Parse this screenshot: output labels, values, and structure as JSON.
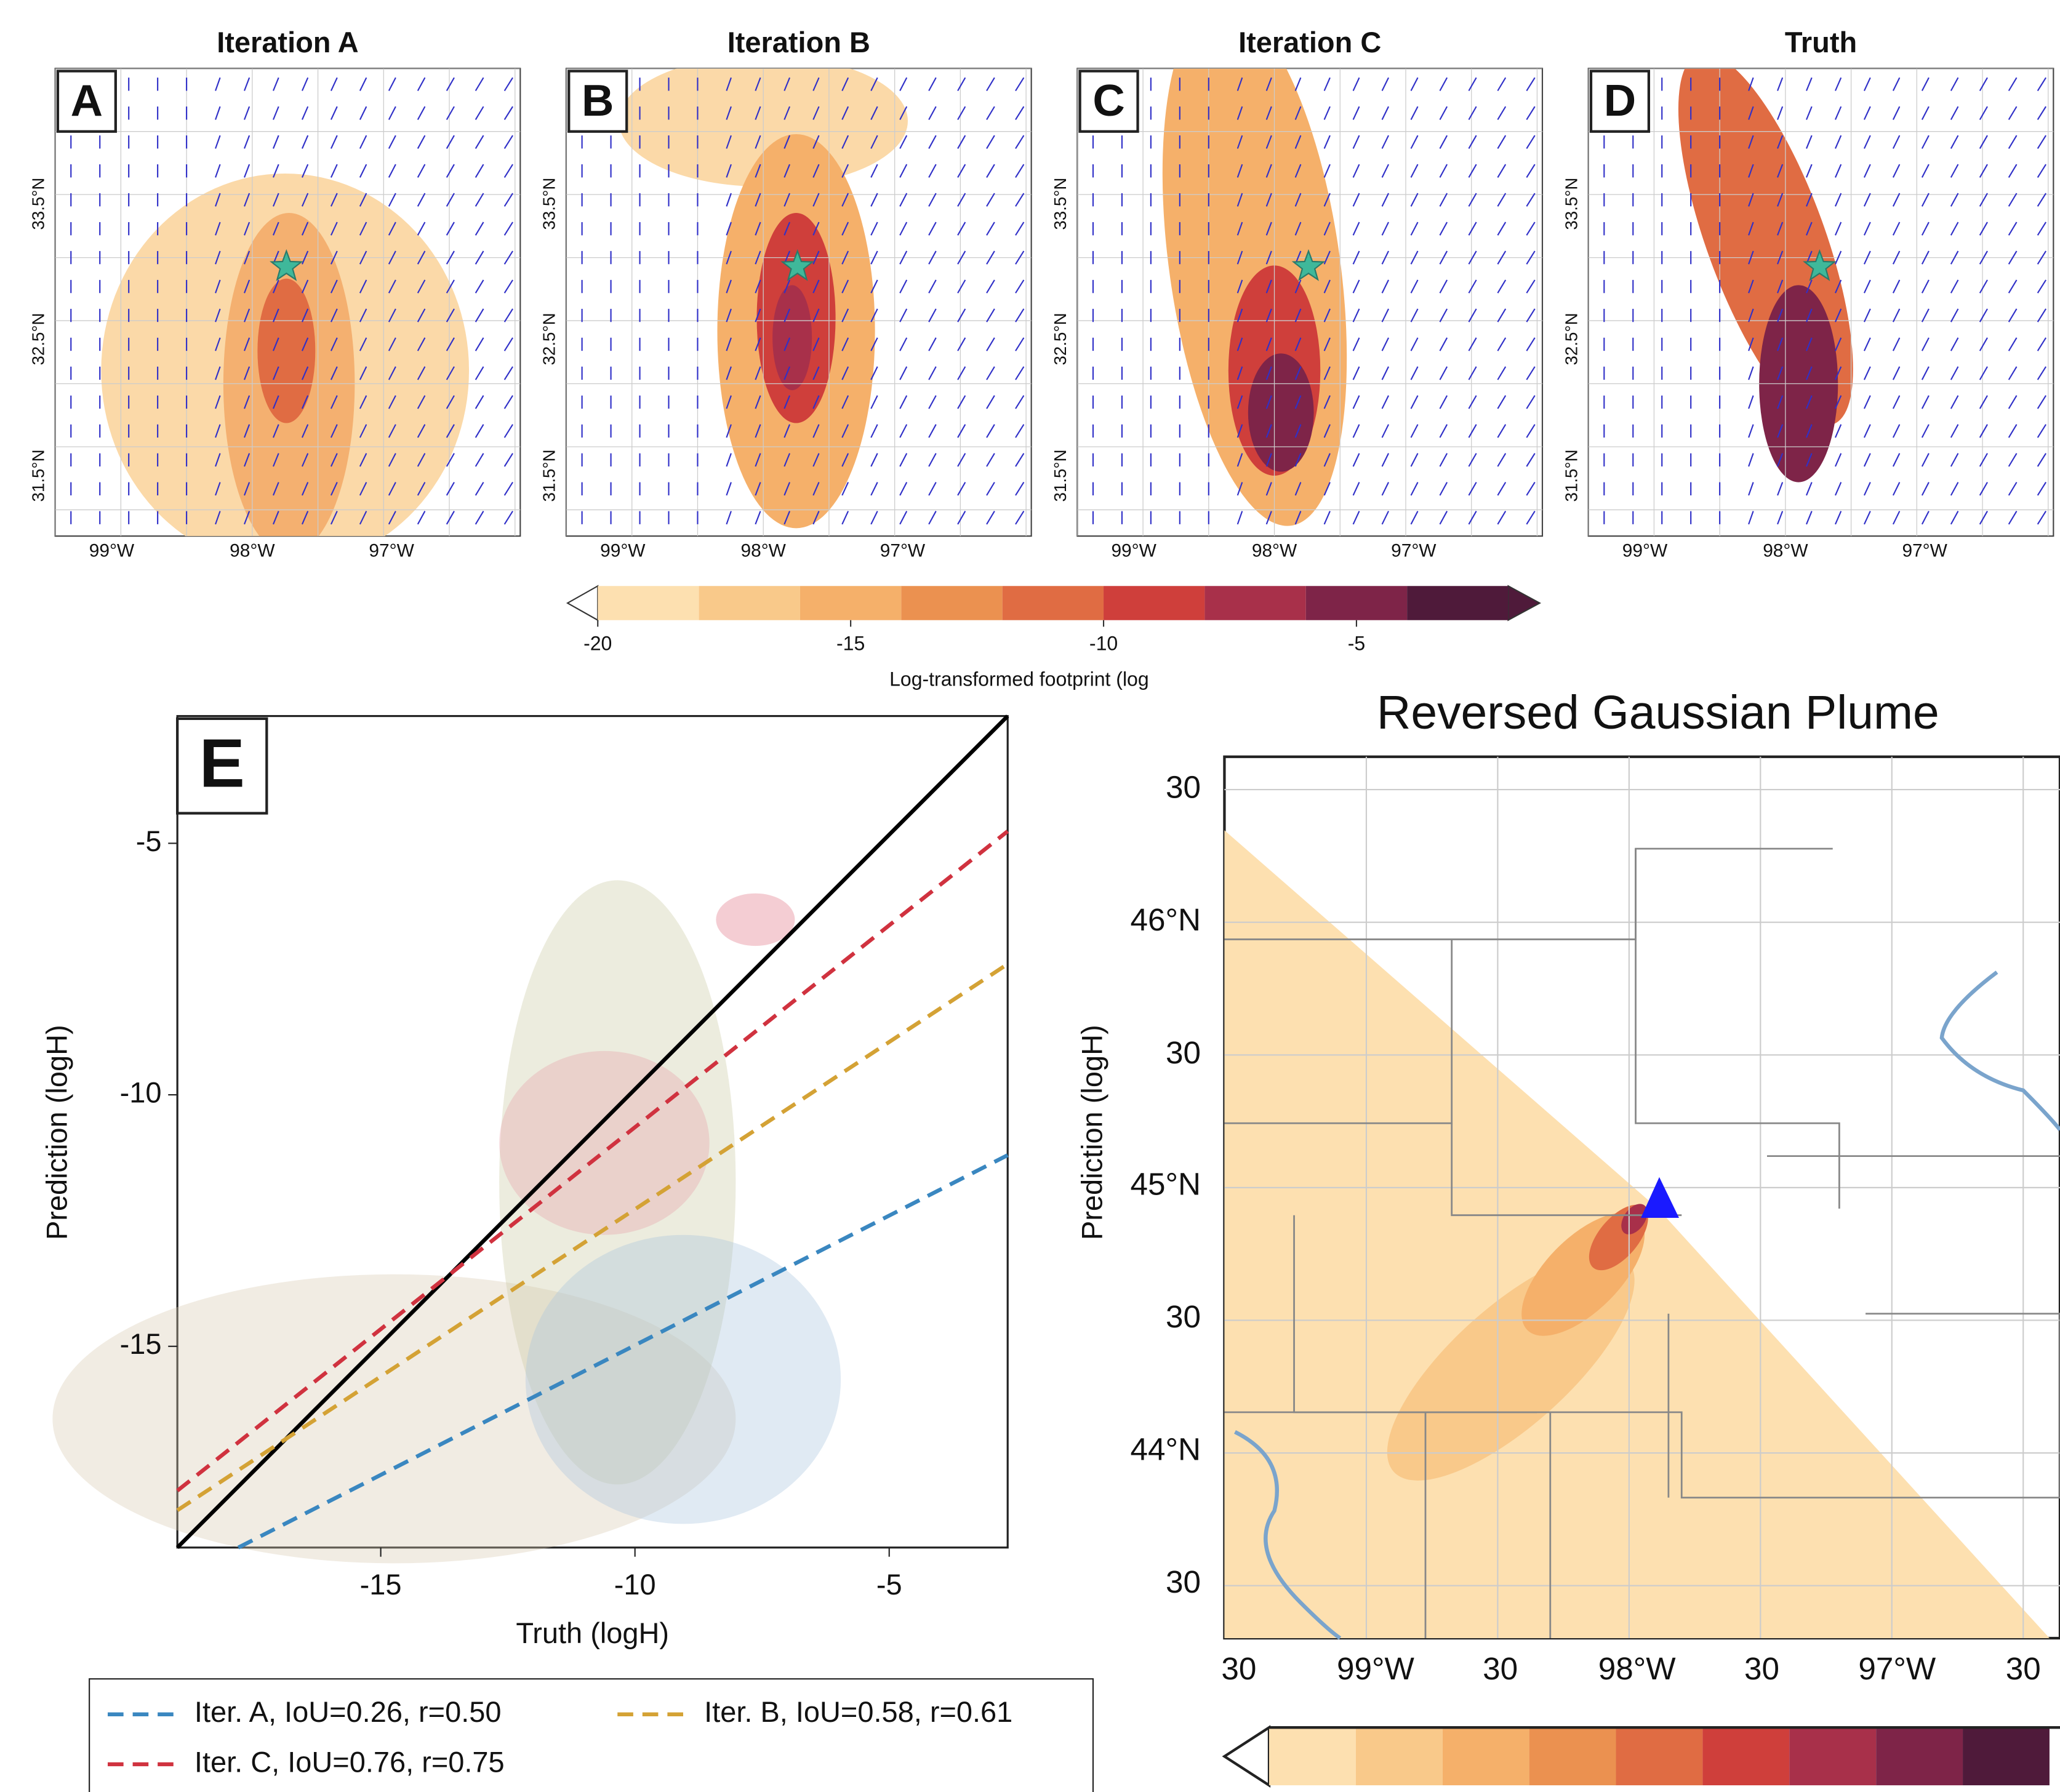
{
  "chart_data": [
    {
      "type": "map-panels",
      "panels": [
        {
          "title": "Iteration A",
          "label": "A"
        },
        {
          "title": "Iteration B",
          "label": "B"
        },
        {
          "title": "Iteration C",
          "label": "C"
        },
        {
          "title": "Truth",
          "label": "D"
        }
      ],
      "lat_labels": [
        "33.5°N",
        "32.5°N",
        "31.5°N"
      ],
      "lon_labels": [
        "99°W",
        "98°W",
        "97°W"
      ]
    },
    {
      "type": "colorbar",
      "xlim": [
        -20,
        -2
      ],
      "bins": [
        -20,
        -18,
        -16,
        -14,
        -12,
        -10,
        -8,
        -6,
        -4,
        -2
      ],
      "colors": [
        "#fde0b0",
        "#f9c98a",
        "#f5b06a",
        "#eb9150",
        "#e06c43",
        "#cf3f3b",
        "#a8304a",
        "#7e2448",
        "#4f1a3a"
      ],
      "xticks": [
        -20,
        -15,
        -10,
        -5
      ],
      "xlabel": "Log-transformed footprint (log"
    },
    {
      "type": "scatter-lines",
      "label": "E",
      "xlabel": "Truth (logH)",
      "ylabel": "Prediction (logH)",
      "xlim": [
        -19,
        -2.67
      ],
      "ylim": [
        -19,
        -2.47
      ],
      "xticks": [
        -15,
        -10,
        -5
      ],
      "yticks": [
        -5,
        -10,
        -15
      ],
      "reference_line": {
        "x": [
          -19,
          -2.67
        ],
        "y": [
          -19,
          -2.47
        ],
        "color": "#000000"
      },
      "series": [
        {
          "name": "Iter. A, IoU=0.26, r=0.50",
          "color": "#3a87c0",
          "x": [
            -17.8,
            -2.67
          ],
          "y": [
            -19,
            -11.2
          ]
        },
        {
          "name": "Iter. B, IoU=0.58, r=0.61",
          "color": "#d4a235",
          "x": [
            -19,
            -2.67
          ],
          "y": [
            -18.26,
            -7.4
          ]
        },
        {
          "name": "Iter. C, IoU=0.76, r=0.75",
          "color": "#d0323f",
          "x": [
            -19,
            -2.67
          ],
          "y": [
            -17.87,
            -4.76
          ]
        }
      ]
    },
    {
      "type": "plume-map",
      "title": "Reversed Gaussian Plume",
      "ylabel": "Prediction (logH)",
      "lat_labels": [
        "30",
        "46°N",
        "30",
        "45°N",
        "30",
        "44°N",
        "30"
      ],
      "lon_labels": [
        "30",
        "99°W",
        "30",
        "98°W",
        "30",
        "97°W",
        "30"
      ],
      "colors": [
        "#fde0b0",
        "#f9c98a",
        "#f5b06a",
        "#eb9150",
        "#e06c43",
        "#cf3f3b",
        "#a8304a",
        "#7e2448",
        "#4f1a3a"
      ]
    }
  ]
}
